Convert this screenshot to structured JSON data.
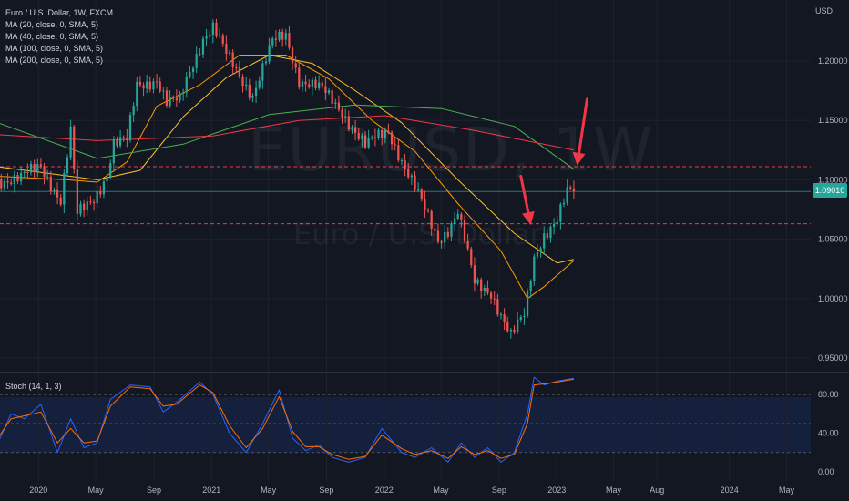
{
  "chart_title": "Euro / U.S. Dollar, 1W, FXCM",
  "watermark": {
    "symbol": "EURUSD, 1W",
    "description": "Euro / U.S. Dollar"
  },
  "currency_label": "USD",
  "last_price_label": "1.09010",
  "colors": {
    "background": "#131722",
    "up": "#26a69a",
    "down": "#ef5350",
    "ma20": "#ff9800",
    "ma40": "#fbc02d",
    "ma100": "#4caf50",
    "ma200": "#f23645",
    "stoch_k": "#2962ff",
    "stoch_d": "#ff6d00",
    "annotation": "#f23645"
  },
  "legend": [
    "MA (20, close, 0, SMA, 5)",
    "MA (40, close, 0, SMA, 5)",
    "MA (100, close, 0, SMA, 5)",
    "MA (200, close, 0, SMA, 5)"
  ],
  "stoch_legend": "Stoch (14, 1, 3)",
  "chart_data": [
    {
      "type": "candlestick",
      "title": "Euro / U.S. Dollar, 1W, FXCM",
      "y_axis": {
        "ticks": [
          "1.20000",
          "1.15000",
          "1.10000",
          "1.05000",
          "1.00000",
          "0.95000"
        ],
        "range": [
          0.945,
          1.248
        ]
      },
      "x_axis": {
        "ticks": [
          "2020",
          "May",
          "Sep",
          "2021",
          "May",
          "Sep",
          "2022",
          "May",
          "Sep",
          "2023",
          "May",
          "Aug",
          "2024",
          "May"
        ],
        "range": [
          "2019-10",
          "2024-06"
        ]
      },
      "last_price": 1.0901,
      "horizontal_levels": [
        1.111,
        1.063
      ],
      "price_path": [
        [
          "2019-10-07",
          1.1
        ],
        [
          "2019-11-25",
          1.101
        ],
        [
          "2020-01-06",
          1.112
        ],
        [
          "2020-02-17",
          1.083
        ],
        [
          "2020-03-09",
          1.14
        ],
        [
          "2020-03-23",
          1.07
        ],
        [
          "2020-04-27",
          1.085
        ],
        [
          "2020-05-25",
          1.105
        ],
        [
          "2020-06-08",
          1.13
        ],
        [
          "2020-07-06",
          1.132
        ],
        [
          "2020-07-27",
          1.18
        ],
        [
          "2020-09-07",
          1.185
        ],
        [
          "2020-09-28",
          1.164
        ],
        [
          "2020-10-26",
          1.166
        ],
        [
          "2020-11-09",
          1.185
        ],
        [
          "2020-12-14",
          1.22
        ],
        [
          "2021-01-04",
          1.228
        ],
        [
          "2021-02-01",
          1.205
        ],
        [
          "2021-03-29",
          1.172
        ],
        [
          "2021-05-10",
          1.215
        ],
        [
          "2021-06-07",
          1.222
        ],
        [
          "2021-07-05",
          1.185
        ],
        [
          "2021-08-23",
          1.175
        ],
        [
          "2021-10-04",
          1.158
        ],
        [
          "2021-11-22",
          1.128
        ],
        [
          "2022-01-10",
          1.142
        ],
        [
          "2022-03-07",
          1.092
        ],
        [
          "2022-04-25",
          1.05
        ],
        [
          "2022-05-16",
          1.059
        ],
        [
          "2022-06-06",
          1.073
        ],
        [
          "2022-07-11",
          1.012
        ],
        [
          "2022-08-15",
          1.006
        ],
        [
          "2022-09-26",
          0.968
        ],
        [
          "2022-10-24",
          0.985
        ],
        [
          "2022-11-14",
          1.035
        ],
        [
          "2022-12-05",
          1.055
        ],
        [
          "2023-01-02",
          1.066
        ],
        [
          "2023-01-23",
          1.088
        ],
        [
          "2023-02-06",
          1.0901
        ]
      ],
      "moving_averages": [
        {
          "name": "MA (20, close, 0, SMA, 5)",
          "points": [
            [
              "2019-10-07",
              1.103
            ],
            [
              "2020-03-02",
              1.1
            ],
            [
              "2020-05-04",
              1.098
            ],
            [
              "2020-07-06",
              1.115
            ],
            [
              "2020-09-07",
              1.162
            ],
            [
              "2020-12-07",
              1.18
            ],
            [
              "2021-03-01",
              1.205
            ],
            [
              "2021-06-07",
              1.205
            ],
            [
              "2021-09-06",
              1.185
            ],
            [
              "2021-12-06",
              1.15
            ],
            [
              "2022-03-07",
              1.124
            ],
            [
              "2022-06-06",
              1.08
            ],
            [
              "2022-09-05",
              1.04
            ],
            [
              "2022-10-31",
              1.0
            ],
            [
              "2022-12-05",
              1.01
            ],
            [
              "2023-02-06",
              1.032
            ]
          ]
        },
        {
          "name": "MA (40, close, 0, SMA, 5)",
          "points": [
            [
              "2019-10-07",
              1.111
            ],
            [
              "2020-05-04",
              1.1
            ],
            [
              "2020-08-03",
              1.108
            ],
            [
              "2020-11-02",
              1.153
            ],
            [
              "2021-02-01",
              1.186
            ],
            [
              "2021-05-03",
              1.205
            ],
            [
              "2021-08-02",
              1.198
            ],
            [
              "2021-11-01",
              1.175
            ],
            [
              "2022-02-07",
              1.148
            ],
            [
              "2022-06-06",
              1.1
            ],
            [
              "2022-10-03",
              1.055
            ],
            [
              "2023-01-02",
              1.03
            ],
            [
              "2023-02-06",
              1.033
            ]
          ]
        },
        {
          "name": "MA (100, close, 0, SMA, 5)",
          "points": [
            [
              "2019-10-07",
              1.148
            ],
            [
              "2020-05-04",
              1.118
            ],
            [
              "2020-11-02",
              1.13
            ],
            [
              "2021-05-03",
              1.155
            ],
            [
              "2021-11-01",
              1.163
            ],
            [
              "2022-05-02",
              1.16
            ],
            [
              "2022-10-03",
              1.145
            ],
            [
              "2023-02-06",
              1.109
            ]
          ]
        },
        {
          "name": "MA (200, close, 0, SMA, 5)",
          "points": [
            [
              "2019-10-07",
              1.138
            ],
            [
              "2020-05-04",
              1.133
            ],
            [
              "2021-01-04",
              1.137
            ],
            [
              "2021-07-05",
              1.15
            ],
            [
              "2022-01-03",
              1.154
            ],
            [
              "2022-07-04",
              1.142
            ],
            [
              "2023-02-06",
              1.125
            ]
          ]
        }
      ],
      "annotations": [
        {
          "type": "arrow",
          "from": [
            "2022-10-17",
            1.103
          ],
          "to": [
            "2022-11-07",
            1.062
          ]
        },
        {
          "type": "arrow",
          "from": [
            "2023-03-06",
            1.168
          ],
          "to": [
            "2023-02-13",
            1.112
          ]
        }
      ]
    },
    {
      "type": "line",
      "title": "Stoch (14, 1, 3)",
      "y_axis": {
        "ticks": [
          "80.00",
          "40.00",
          "0.00"
        ],
        "range": [
          0,
          100
        ]
      },
      "reference_lines": [
        80,
        50,
        20
      ],
      "series": [
        {
          "name": "%K",
          "points": [
            [
              "2019-10-07",
              30
            ],
            [
              "2019-11-04",
              60
            ],
            [
              "2019-12-02",
              55
            ],
            [
              "2020-01-06",
              70
            ],
            [
              "2020-02-10",
              20
            ],
            [
              "2020-03-09",
              55
            ],
            [
              "2020-04-06",
              25
            ],
            [
              "2020-05-04",
              30
            ],
            [
              "2020-06-01",
              75
            ],
            [
              "2020-07-13",
              90
            ],
            [
              "2020-08-24",
              88
            ],
            [
              "2020-09-21",
              62
            ],
            [
              "2020-10-19",
              72
            ],
            [
              "2020-12-07",
              93
            ],
            [
              "2021-01-04",
              80
            ],
            [
              "2021-02-08",
              40
            ],
            [
              "2021-03-15",
              20
            ],
            [
              "2021-04-19",
              50
            ],
            [
              "2021-05-24",
              85
            ],
            [
              "2021-06-21",
              35
            ],
            [
              "2021-07-19",
              22
            ],
            [
              "2021-08-16",
              28
            ],
            [
              "2021-09-13",
              15
            ],
            [
              "2021-10-18",
              10
            ],
            [
              "2021-11-22",
              15
            ],
            [
              "2021-12-27",
              45
            ],
            [
              "2022-02-07",
              20
            ],
            [
              "2022-03-07",
              15
            ],
            [
              "2022-04-11",
              25
            ],
            [
              "2022-05-16",
              10
            ],
            [
              "2022-06-13",
              30
            ],
            [
              "2022-07-11",
              15
            ],
            [
              "2022-08-08",
              25
            ],
            [
              "2022-09-05",
              10
            ],
            [
              "2022-10-03",
              20
            ],
            [
              "2022-10-31",
              60
            ],
            [
              "2022-11-14",
              98
            ],
            [
              "2022-12-05",
              90
            ],
            [
              "2023-01-02",
              94
            ],
            [
              "2023-02-06",
              97
            ]
          ]
        },
        {
          "name": "%D",
          "points": [
            [
              "2019-10-07",
              35
            ],
            [
              "2019-11-04",
              55
            ],
            [
              "2019-12-02",
              58
            ],
            [
              "2020-01-06",
              62
            ],
            [
              "2020-02-10",
              30
            ],
            [
              "2020-03-09",
              45
            ],
            [
              "2020-04-06",
              30
            ],
            [
              "2020-05-04",
              32
            ],
            [
              "2020-06-01",
              68
            ],
            [
              "2020-07-13",
              88
            ],
            [
              "2020-08-24",
              86
            ],
            [
              "2020-09-21",
              68
            ],
            [
              "2020-10-19",
              70
            ],
            [
              "2020-12-07",
              90
            ],
            [
              "2021-01-04",
              82
            ],
            [
              "2021-02-08",
              48
            ],
            [
              "2021-03-15",
              25
            ],
            [
              "2021-04-19",
              45
            ],
            [
              "2021-05-24",
              78
            ],
            [
              "2021-06-21",
              42
            ],
            [
              "2021-07-19",
              26
            ],
            [
              "2021-08-16",
              26
            ],
            [
              "2021-09-13",
              18
            ],
            [
              "2021-10-18",
              13
            ],
            [
              "2021-11-22",
              16
            ],
            [
              "2021-12-27",
              38
            ],
            [
              "2022-02-07",
              24
            ],
            [
              "2022-03-07",
              18
            ],
            [
              "2022-04-11",
              22
            ],
            [
              "2022-05-16",
              14
            ],
            [
              "2022-06-13",
              26
            ],
            [
              "2022-07-11",
              18
            ],
            [
              "2022-08-08",
              22
            ],
            [
              "2022-09-05",
              14
            ],
            [
              "2022-10-03",
              18
            ],
            [
              "2022-10-31",
              50
            ],
            [
              "2022-11-14",
              90
            ],
            [
              "2022-12-05",
              91
            ],
            [
              "2023-01-02",
              93
            ],
            [
              "2023-02-06",
              96
            ]
          ]
        }
      ]
    }
  ]
}
